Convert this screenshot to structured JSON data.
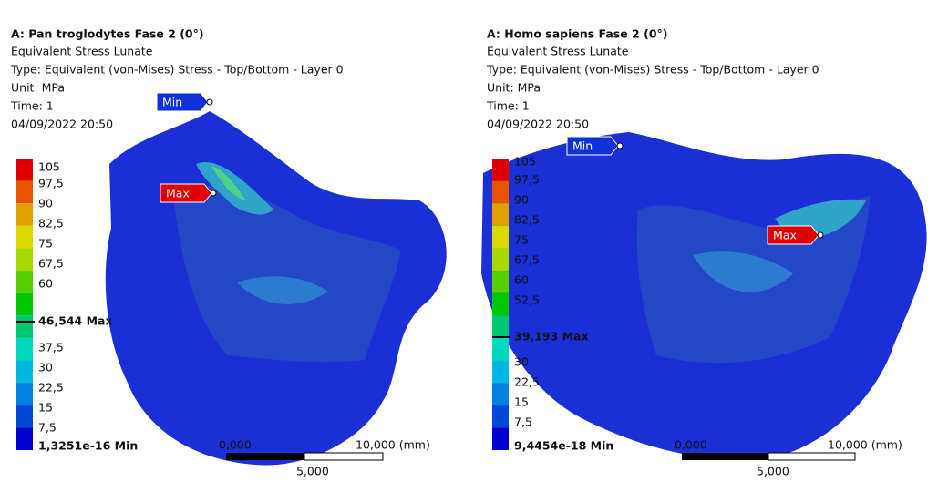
{
  "panels": [
    {
      "title": "A: Pan troglodytes Fase 2 (0°)",
      "lines": [
        "Equivalent Stress Lunate",
        "Type: Equivalent (von-Mises) Stress - Top/Bottom - Layer 0",
        "Unit: MPa",
        "Time: 1",
        "04/09/2022 20:50"
      ],
      "legend": [
        "105",
        "97,5",
        "90",
        "82,5",
        "75",
        "67,5",
        "60",
        "46,544 Max",
        "37,5",
        "30",
        "22,5",
        "15",
        "7,5",
        "1,3251e-16 Min"
      ],
      "markers": {
        "min": "Min",
        "max": "Max"
      },
      "scale": {
        "start": "0,000",
        "end": "10,000 (mm)",
        "mid": "5,000"
      }
    },
    {
      "title": "A: Homo sapiens Fase 2 (0°)",
      "lines": [
        "Equivalent Stress Lunate",
        "Type: Equivalent (von-Mises) Stress - Top/Bottom - Layer 0",
        "Unit: MPa",
        "Time: 1",
        "04/09/2022 20:50"
      ],
      "legend": [
        "105",
        "97,5",
        "90",
        "82,5",
        "75",
        "67,5",
        "60",
        "52,5",
        "39,193 Max",
        "30",
        "22,5",
        "15",
        "7,5",
        "9,4454e-18 Min"
      ],
      "markers": {
        "min": "Min",
        "max": "Max"
      },
      "scale": {
        "start": "0,000",
        "end": "10,000 (mm)",
        "mid": "5,000"
      }
    }
  ]
}
